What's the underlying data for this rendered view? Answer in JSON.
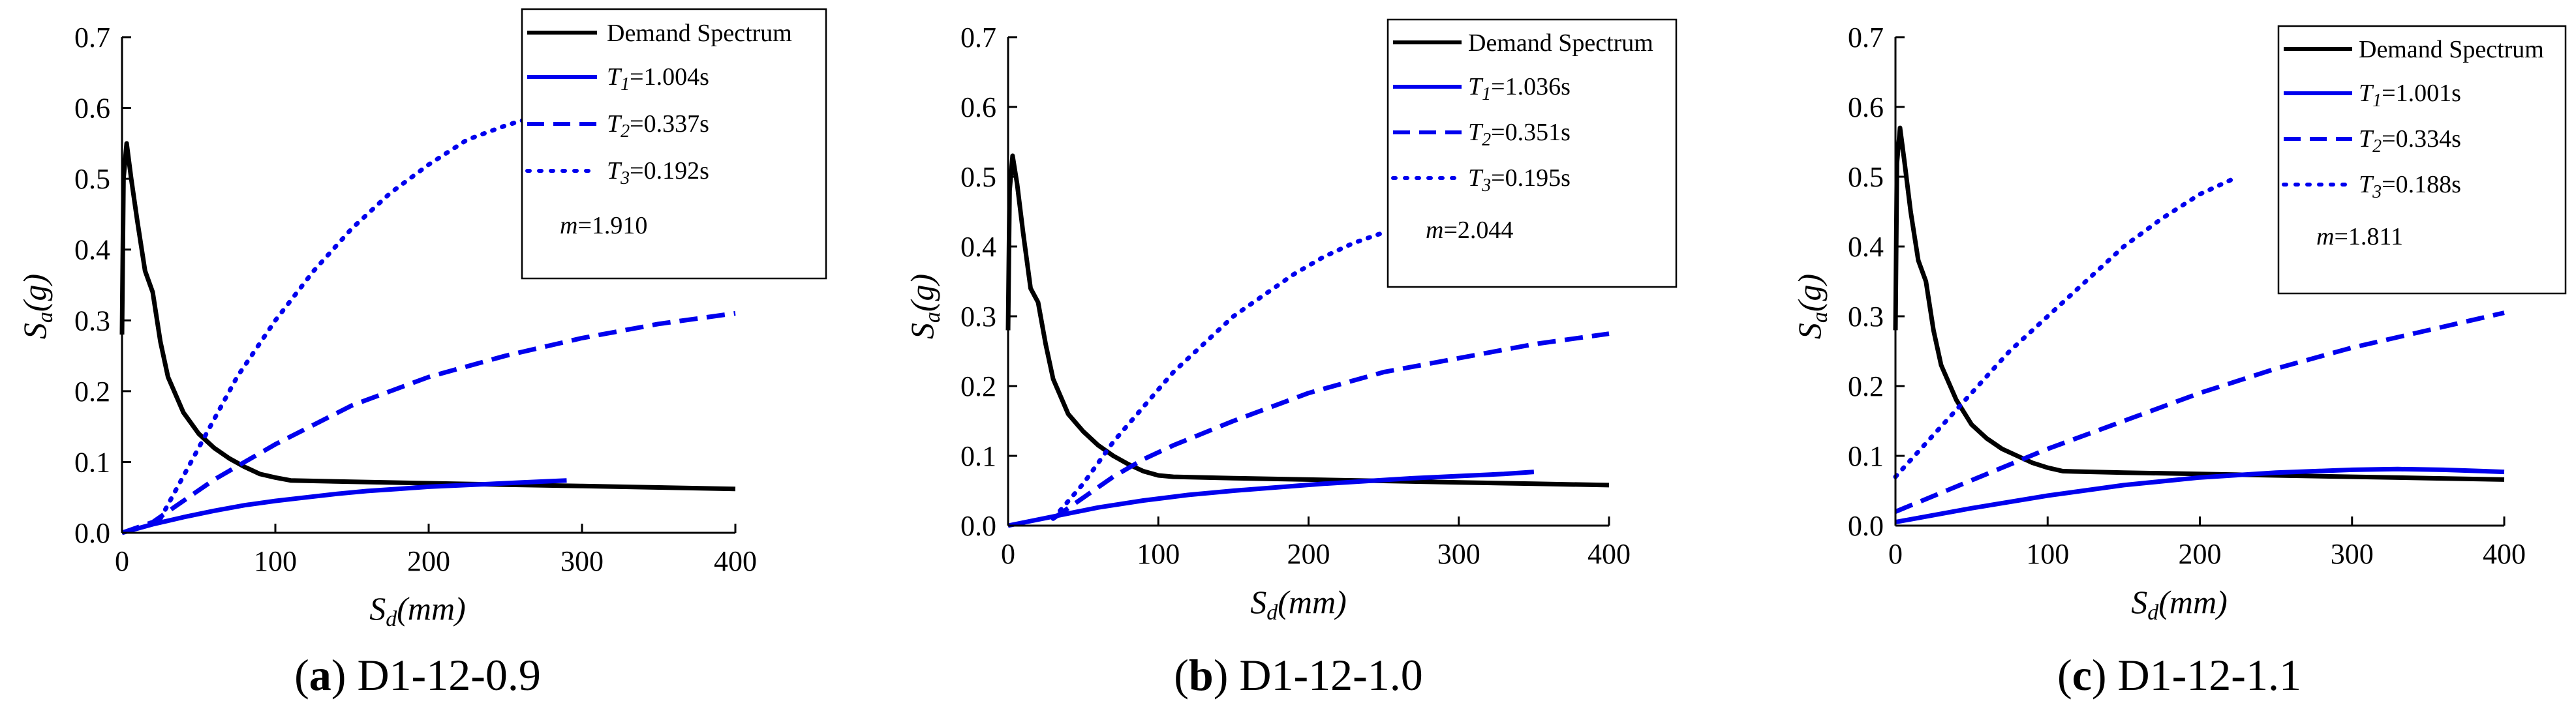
{
  "figure": {
    "panels": [
      {
        "caption_letter": "a",
        "caption_name": "D1-12-0.9",
        "legend": {
          "demand_label": "Demand Spectrum",
          "t1_sub": "1",
          "t1_value": "=1.004s",
          "t2_sub": "2",
          "t2_value": "=0.337s",
          "t3_sub": "3",
          "t3_value": "=0.192s",
          "m_value": "=1.910"
        }
      },
      {
        "caption_letter": "b",
        "caption_name": "D1-12-1.0",
        "legend": {
          "demand_label": "Demand Spectrum",
          "t1_sub": "1",
          "t1_value": "=1.036s",
          "t2_sub": "2",
          "t2_value": "=0.351s",
          "t3_sub": "3",
          "t3_value": "=0.195s",
          "m_value": "=2.044"
        }
      },
      {
        "caption_letter": "c",
        "caption_name": "D1-12-1.1",
        "legend": {
          "demand_label": "Demand Spectrum",
          "t1_sub": "1",
          "t1_value": "=1.001s",
          "t2_sub": "2",
          "t2_value": "=0.334s",
          "t3_sub": "3",
          "t3_value": "=0.188s",
          "m_value": "=1.811"
        }
      }
    ]
  },
  "chart_data": [
    {
      "type": "line",
      "title": "(a) D1-12-0.9",
      "xlabel": "Sd(mm)",
      "ylabel": "Sa(g)",
      "xlim": [
        0,
        400
      ],
      "ylim": [
        0,
        0.7
      ],
      "xticks": [
        0,
        100,
        200,
        300,
        400
      ],
      "yticks": [
        0.0,
        0.1,
        0.2,
        0.3,
        0.4,
        0.5,
        0.6,
        0.7
      ],
      "legend_position": "top-right",
      "annotation": "m=1.910",
      "series": [
        {
          "name": "Demand Spectrum",
          "color": "#000000",
          "style": "solid",
          "x": [
            0,
            1,
            3,
            6,
            10,
            15,
            20,
            25,
            30,
            40,
            50,
            60,
            70,
            80,
            90,
            100,
            110,
            150,
            200,
            250,
            300,
            350,
            400
          ],
          "y": [
            0.28,
            0.5,
            0.55,
            0.5,
            0.44,
            0.37,
            0.34,
            0.27,
            0.22,
            0.17,
            0.14,
            0.12,
            0.105,
            0.093,
            0.083,
            0.078,
            0.074,
            0.072,
            0.07,
            0.068,
            0.066,
            0.064,
            0.062
          ]
        },
        {
          "name": "T1=1.004s",
          "color": "#0000ee",
          "style": "solid",
          "x": [
            0,
            20,
            40,
            60,
            80,
            100,
            120,
            140,
            160,
            180,
            200,
            220,
            240,
            260,
            290
          ],
          "y": [
            0,
            0.012,
            0.022,
            0.031,
            0.039,
            0.045,
            0.05,
            0.055,
            0.059,
            0.062,
            0.065,
            0.067,
            0.069,
            0.071,
            0.074
          ]
        },
        {
          "name": "T2=0.337s",
          "color": "#0000ee",
          "style": "dashed",
          "x": [
            0,
            20,
            40,
            60,
            80,
            100,
            150,
            200,
            250,
            300,
            350,
            400
          ],
          "y": [
            0,
            0.015,
            0.045,
            0.075,
            0.1,
            0.125,
            0.18,
            0.22,
            0.25,
            0.275,
            0.295,
            0.31
          ]
        },
        {
          "name": "T3=0.192s",
          "color": "#0000ee",
          "style": "dotted",
          "x": [
            25,
            50,
            75,
            100,
            125,
            150,
            175,
            200,
            225,
            250,
            265
          ],
          "y": [
            0.02,
            0.12,
            0.22,
            0.3,
            0.37,
            0.43,
            0.48,
            0.52,
            0.555,
            0.575,
            0.585
          ]
        }
      ]
    },
    {
      "type": "line",
      "title": "(b) D1-12-1.0",
      "xlabel": "Sd(mm)",
      "ylabel": "Sa(g)",
      "xlim": [
        0,
        400
      ],
      "ylim": [
        0,
        0.7
      ],
      "xticks": [
        0,
        100,
        200,
        300,
        400
      ],
      "yticks": [
        0.0,
        0.1,
        0.2,
        0.3,
        0.4,
        0.5,
        0.6,
        0.7
      ],
      "legend_position": "top-right",
      "annotation": "m=2.044",
      "series": [
        {
          "name": "Demand Spectrum",
          "color": "#000000",
          "style": "solid",
          "x": [
            0,
            1,
            3,
            6,
            10,
            15,
            20,
            25,
            30,
            40,
            50,
            60,
            70,
            80,
            90,
            100,
            110,
            150,
            200,
            250,
            300,
            350,
            400
          ],
          "y": [
            0.28,
            0.48,
            0.53,
            0.49,
            0.42,
            0.34,
            0.32,
            0.26,
            0.21,
            0.16,
            0.135,
            0.115,
            0.1,
            0.088,
            0.078,
            0.072,
            0.07,
            0.068,
            0.066,
            0.064,
            0.062,
            0.06,
            0.058
          ]
        },
        {
          "name": "T1=1.036s",
          "color": "#0000ee",
          "style": "solid",
          "x": [
            0,
            30,
            60,
            90,
            120,
            150,
            180,
            210,
            240,
            270,
            300,
            330,
            350
          ],
          "y": [
            0,
            0.013,
            0.026,
            0.036,
            0.044,
            0.05,
            0.055,
            0.06,
            0.064,
            0.068,
            0.071,
            0.074,
            0.077
          ]
        },
        {
          "name": "T2=0.351s",
          "color": "#0000ee",
          "style": "dashed",
          "x": [
            30,
            50,
            70,
            90,
            110,
            150,
            200,
            250,
            300,
            350,
            400
          ],
          "y": [
            0.01,
            0.04,
            0.07,
            0.095,
            0.115,
            0.15,
            0.19,
            0.22,
            0.24,
            0.26,
            0.275
          ]
        },
        {
          "name": "T3=0.195s",
          "color": "#0000ee",
          "style": "dotted",
          "x": [
            30,
            50,
            70,
            90,
            110,
            130,
            150,
            170,
            190,
            210,
            230,
            250
          ],
          "y": [
            0.01,
            0.06,
            0.12,
            0.17,
            0.22,
            0.26,
            0.3,
            0.33,
            0.36,
            0.385,
            0.405,
            0.42
          ]
        }
      ]
    },
    {
      "type": "line",
      "title": "(c) D1-12-1.1",
      "xlabel": "Sd(mm)",
      "ylabel": "Sa(g)",
      "xlim": [
        0,
        400
      ],
      "ylim": [
        0,
        0.7
      ],
      "xticks": [
        0,
        100,
        200,
        300,
        400
      ],
      "yticks": [
        0.0,
        0.1,
        0.2,
        0.3,
        0.4,
        0.5,
        0.6,
        0.7
      ],
      "legend_position": "top-right",
      "annotation": "m=1.811",
      "series": [
        {
          "name": "Demand Spectrum",
          "color": "#000000",
          "style": "solid",
          "x": [
            0,
            1,
            3,
            6,
            10,
            15,
            20,
            25,
            30,
            40,
            50,
            60,
            70,
            80,
            90,
            100,
            110,
            150,
            200,
            250,
            300,
            350,
            400
          ],
          "y": [
            0.28,
            0.52,
            0.57,
            0.52,
            0.45,
            0.38,
            0.35,
            0.28,
            0.23,
            0.18,
            0.145,
            0.125,
            0.11,
            0.1,
            0.09,
            0.083,
            0.078,
            0.076,
            0.074,
            0.072,
            0.07,
            0.068,
            0.066
          ]
        },
        {
          "name": "T1=1.001s",
          "color": "#0000ee",
          "style": "solid",
          "x": [
            0,
            50,
            100,
            150,
            200,
            250,
            300,
            330,
            360,
            400
          ],
          "y": [
            0.005,
            0.025,
            0.043,
            0.058,
            0.069,
            0.076,
            0.08,
            0.081,
            0.08,
            0.077
          ]
        },
        {
          "name": "T2=0.334s",
          "color": "#0000ee",
          "style": "dashed",
          "x": [
            0,
            50,
            100,
            150,
            200,
            250,
            300,
            350,
            400
          ],
          "y": [
            0.02,
            0.065,
            0.11,
            0.15,
            0.19,
            0.225,
            0.255,
            0.28,
            0.305
          ]
        },
        {
          "name": "T3=0.188s",
          "color": "#0000ee",
          "style": "dotted",
          "x": [
            0,
            25,
            50,
            75,
            100,
            125,
            150,
            175,
            200,
            225
          ],
          "y": [
            0.07,
            0.13,
            0.19,
            0.25,
            0.3,
            0.35,
            0.4,
            0.44,
            0.475,
            0.5
          ]
        }
      ]
    }
  ]
}
